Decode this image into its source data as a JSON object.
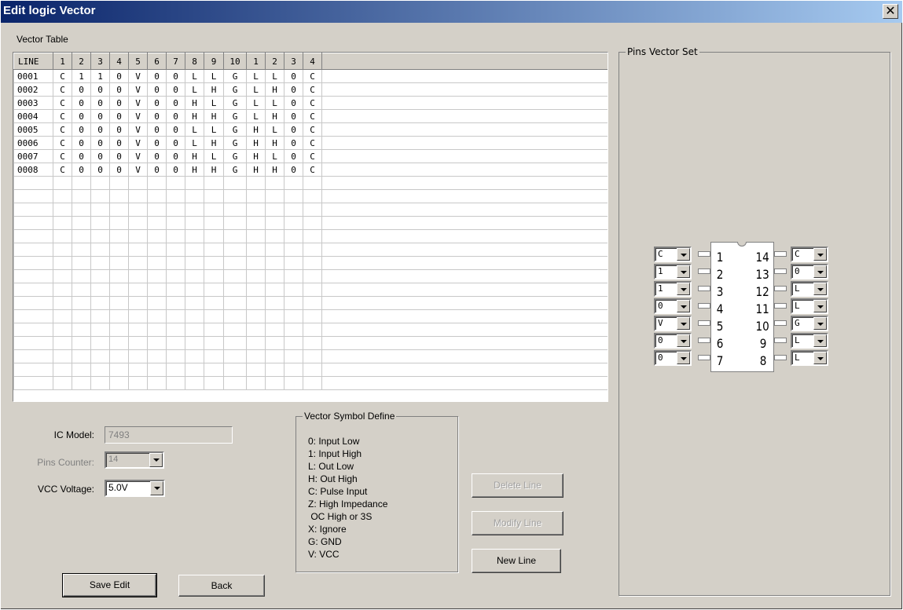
{
  "window": {
    "title": "Edit logic Vector",
    "close": "✕"
  },
  "vector_table": {
    "label": "Vector Table",
    "headers": [
      "LINE",
      "1",
      "2",
      "3",
      "4",
      "5",
      "6",
      "7",
      "8",
      "9",
      "10",
      "1",
      "2",
      "3",
      "4"
    ],
    "rows": [
      [
        "0001",
        "C",
        "1",
        "1",
        "0",
        "V",
        "0",
        "0",
        "L",
        "L",
        "G",
        "L",
        "L",
        "0",
        "C"
      ],
      [
        "0002",
        "C",
        "0",
        "0",
        "0",
        "V",
        "0",
        "0",
        "L",
        "H",
        "G",
        "L",
        "H",
        "0",
        "C"
      ],
      [
        "0003",
        "C",
        "0",
        "0",
        "0",
        "V",
        "0",
        "0",
        "H",
        "L",
        "G",
        "L",
        "L",
        "0",
        "C"
      ],
      [
        "0004",
        "C",
        "0",
        "0",
        "0",
        "V",
        "0",
        "0",
        "H",
        "H",
        "G",
        "L",
        "H",
        "0",
        "C"
      ],
      [
        "0005",
        "C",
        "0",
        "0",
        "0",
        "V",
        "0",
        "0",
        "L",
        "L",
        "G",
        "H",
        "L",
        "0",
        "C"
      ],
      [
        "0006",
        "C",
        "0",
        "0",
        "0",
        "V",
        "0",
        "0",
        "L",
        "H",
        "G",
        "H",
        "H",
        "0",
        "C"
      ],
      [
        "0007",
        "C",
        "0",
        "0",
        "0",
        "V",
        "0",
        "0",
        "H",
        "L",
        "G",
        "H",
        "L",
        "0",
        "C"
      ],
      [
        "0008",
        "C",
        "0",
        "0",
        "0",
        "V",
        "0",
        "0",
        "H",
        "H",
        "G",
        "H",
        "H",
        "0",
        "C"
      ]
    ]
  },
  "pins_panel": {
    "label": "Pins Vector Set",
    "left_pins": [
      {
        "num": "1",
        "value": "C"
      },
      {
        "num": "2",
        "value": "1"
      },
      {
        "num": "3",
        "value": "1"
      },
      {
        "num": "4",
        "value": "0"
      },
      {
        "num": "5",
        "value": "V"
      },
      {
        "num": "6",
        "value": "0"
      },
      {
        "num": "7",
        "value": "0"
      }
    ],
    "right_pins": [
      {
        "num": "14",
        "value": "C"
      },
      {
        "num": "13",
        "value": "0"
      },
      {
        "num": "12",
        "value": "L"
      },
      {
        "num": "11",
        "value": "L"
      },
      {
        "num": "10",
        "value": "G"
      },
      {
        "num": "9",
        "value": "L"
      },
      {
        "num": "8",
        "value": "L"
      }
    ]
  },
  "form": {
    "ic_model_label": "IC Model:",
    "ic_model_value": "7493",
    "pins_counter_label": "Pins Counter:",
    "pins_counter_value": "14",
    "vcc_label": "VCC Voltage:",
    "vcc_value": "5.0V"
  },
  "symbols": {
    "label": "Vector Symbol Define",
    "items": [
      "0: Input Low",
      "1: Input High",
      "L: Out Low",
      "H: Out High",
      "C: Pulse Input",
      "Z: High Impedance",
      " OC High or 3S",
      "X: Ignore",
      "G: GND",
      "V: VCC"
    ]
  },
  "buttons": {
    "delete": "Delete Line",
    "modify": "Modify Line",
    "new": "New Line",
    "save": "Save Edit",
    "back": "Back"
  }
}
